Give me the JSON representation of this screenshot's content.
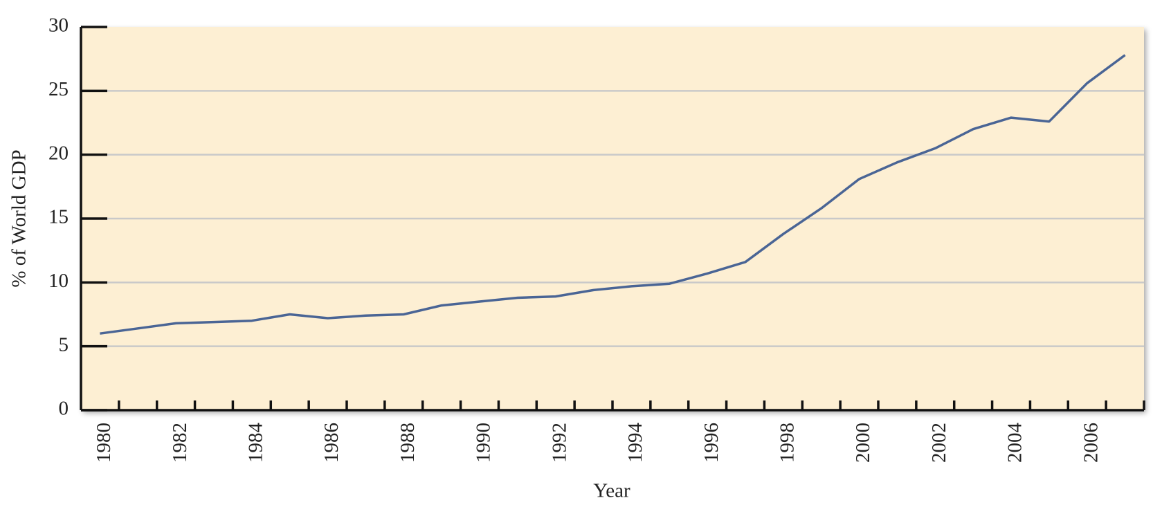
{
  "chart_data": {
    "type": "line",
    "xlabel": "Year",
    "ylabel": "% of World GDP",
    "categories": [
      "1980",
      null,
      "1982",
      null,
      "1984",
      null,
      "1986",
      null,
      "1988",
      null,
      "1990",
      null,
      "1992",
      null,
      "1994",
      null,
      "1996",
      null,
      "1998",
      null,
      "2000",
      null,
      "2002",
      null,
      "2004",
      null,
      "2006",
      null
    ],
    "series": [
      {
        "color": "#4a6595",
        "values": [
          6.0,
          6.4,
          6.8,
          6.9,
          7.0,
          7.5,
          7.2,
          7.4,
          7.5,
          8.2,
          8.5,
          8.8,
          8.9,
          9.4,
          9.7,
          9.9,
          10.7,
          11.6,
          13.8,
          15.8,
          18.1,
          19.4,
          20.5,
          22.0,
          22.9,
          22.6,
          25.6,
          27.8
        ]
      }
    ],
    "ylim": [
      0,
      30
    ],
    "yticks": [
      0,
      5,
      10,
      15,
      20,
      25,
      30
    ],
    "grid": true,
    "background": "#fdefd3"
  }
}
